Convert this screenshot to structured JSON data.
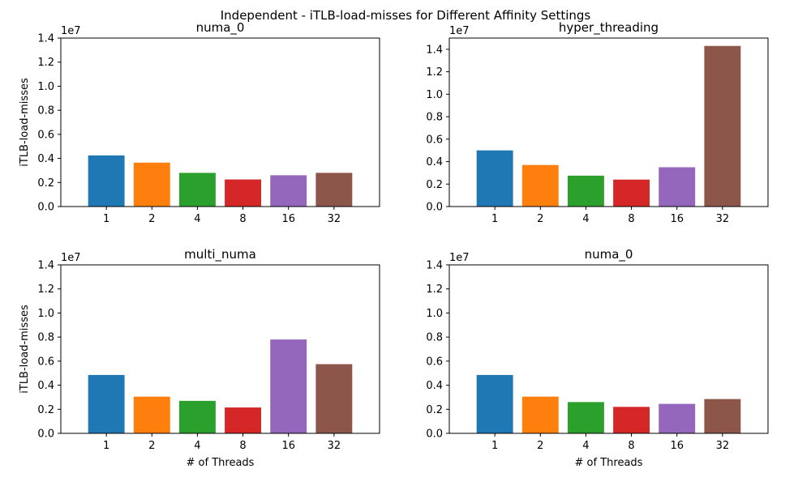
{
  "figure": {
    "title": "Independent - iTLB-load-misses for Different Affinity Settings"
  },
  "chart_data": [
    {
      "type": "bar",
      "title": "numa_0",
      "xlabel": "",
      "ylabel": "iTLB-load-misses",
      "categories": [
        "1",
        "2",
        "4",
        "8",
        "16",
        "32"
      ],
      "values": [
        4250000,
        3650000,
        2800000,
        2250000,
        2600000,
        2800000
      ],
      "colors": [
        "#1f77b4",
        "#ff7f0e",
        "#2ca02c",
        "#d62728",
        "#9467bd",
        "#8c564b"
      ],
      "ylim": [
        0,
        14000000
      ],
      "yticks": [
        0,
        2000000,
        4000000,
        6000000,
        8000000,
        10000000,
        12000000,
        14000000
      ],
      "ytick_labels": [
        "0.0",
        "0.2",
        "0.4",
        "0.6",
        "0.8",
        "1.0",
        "1.2",
        "1.4"
      ],
      "offset_label": "1e7",
      "grid": false,
      "legend": "none"
    },
    {
      "type": "bar",
      "title": "hyper_threading",
      "xlabel": "",
      "ylabel": "",
      "categories": [
        "1",
        "2",
        "4",
        "8",
        "16",
        "32"
      ],
      "values": [
        5000000,
        3700000,
        2750000,
        2400000,
        3500000,
        14300000
      ],
      "colors": [
        "#1f77b4",
        "#ff7f0e",
        "#2ca02c",
        "#d62728",
        "#9467bd",
        "#8c564b"
      ],
      "ylim": [
        0,
        15000000
      ],
      "yticks": [
        0,
        2000000,
        4000000,
        6000000,
        8000000,
        10000000,
        12000000,
        14000000
      ],
      "ytick_labels": [
        "0.0",
        "0.2",
        "0.4",
        "0.6",
        "0.8",
        "1.0",
        "1.2",
        "1.4"
      ],
      "offset_label": "1e7",
      "grid": false,
      "legend": "none"
    },
    {
      "type": "bar",
      "title": "multi_numa",
      "xlabel": "# of Threads",
      "ylabel": "iTLB-load-misses",
      "categories": [
        "1",
        "2",
        "4",
        "8",
        "16",
        "32"
      ],
      "values": [
        4850000,
        3050000,
        2700000,
        2150000,
        7800000,
        5750000
      ],
      "colors": [
        "#1f77b4",
        "#ff7f0e",
        "#2ca02c",
        "#d62728",
        "#9467bd",
        "#8c564b"
      ],
      "ylim": [
        0,
        14000000
      ],
      "yticks": [
        0,
        2000000,
        4000000,
        6000000,
        8000000,
        10000000,
        12000000,
        14000000
      ],
      "ytick_labels": [
        "0.0",
        "0.2",
        "0.4",
        "0.6",
        "0.8",
        "1.0",
        "1.2",
        "1.4"
      ],
      "offset_label": "1e7",
      "grid": false,
      "legend": "none"
    },
    {
      "type": "bar",
      "title": "numa_0",
      "xlabel": "# of Threads",
      "ylabel": "",
      "categories": [
        "1",
        "2",
        "4",
        "8",
        "16",
        "32"
      ],
      "values": [
        4850000,
        3050000,
        2600000,
        2200000,
        2450000,
        2850000
      ],
      "colors": [
        "#1f77b4",
        "#ff7f0e",
        "#2ca02c",
        "#d62728",
        "#9467bd",
        "#8c564b"
      ],
      "ylim": [
        0,
        14000000
      ],
      "yticks": [
        0,
        2000000,
        4000000,
        6000000,
        8000000,
        10000000,
        12000000,
        14000000
      ],
      "ytick_labels": [
        "0.0",
        "0.2",
        "0.4",
        "0.6",
        "0.8",
        "1.0",
        "1.2",
        "1.4"
      ],
      "offset_label": "1e7",
      "grid": false,
      "legend": "none"
    }
  ]
}
